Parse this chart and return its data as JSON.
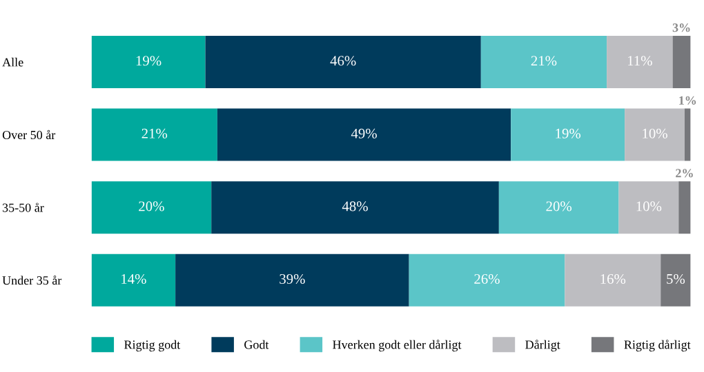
{
  "chart_data": {
    "type": "bar",
    "orientation": "horizontal",
    "stacked": true,
    "categories": [
      "Alle",
      "Over 50 år",
      "35-50 år",
      "Under 35 år"
    ],
    "xlim": [
      0,
      100
    ],
    "tick_labels": "y",
    "legend": "bottom",
    "grid": false,
    "series": [
      {
        "name": "Rigtig godt",
        "color": "#00a99d",
        "values": [
          19,
          21,
          20,
          14
        ],
        "value_labels": [
          "19%",
          "21%",
          "20%",
          "14%"
        ]
      },
      {
        "name": "Godt",
        "color": "#003b5c",
        "values": [
          46,
          49,
          48,
          39
        ],
        "value_labels": [
          "46%",
          "49%",
          "48%",
          "39%"
        ]
      },
      {
        "name": "Hverken godt eller dårligt",
        "color": "#5bc5c8",
        "values": [
          21,
          19,
          20,
          26
        ],
        "value_labels": [
          "21%",
          "19%",
          "20%",
          "26%"
        ]
      },
      {
        "name": "Dårligt",
        "color": "#bdbdc1",
        "values": [
          11,
          10,
          10,
          16
        ],
        "value_labels": [
          "11%",
          "10%",
          "10%",
          "16%"
        ]
      },
      {
        "name": "Rigtig dårligt",
        "color": "#76777b",
        "values": [
          3,
          1,
          2,
          5
        ],
        "value_labels": [
          "3%",
          "1%",
          "2%",
          "5%"
        ]
      }
    ]
  }
}
